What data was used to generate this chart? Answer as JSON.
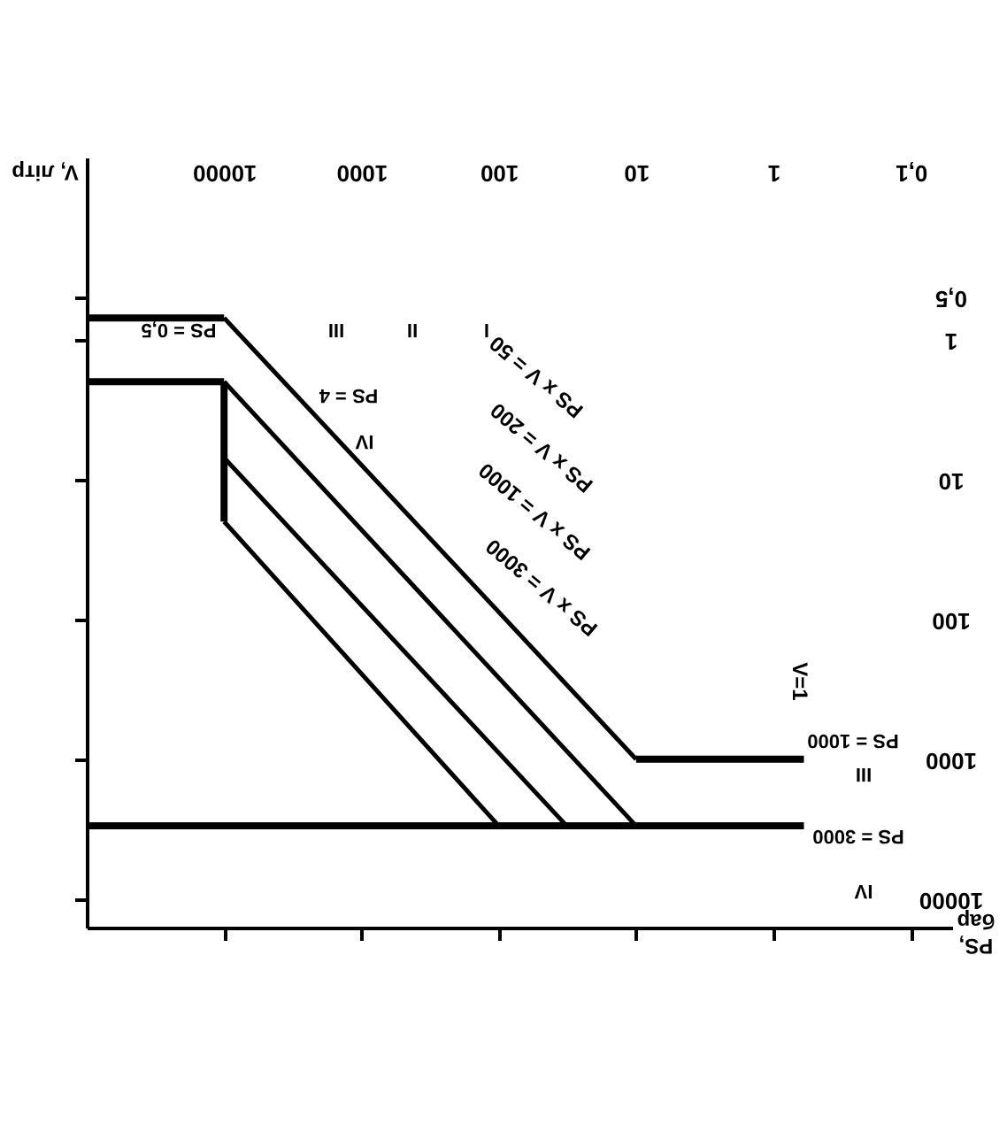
{
  "chart_data": {
    "type": "line",
    "xlabel": "V, літр",
    "ylabel": "PS, бар",
    "log": "xy",
    "xlim": [
      100000,
      0.05
    ],
    "ylim": [
      16000,
      0.05
    ],
    "xticks": [
      10000,
      1000,
      100,
      10,
      1,
      {
        "value": 0.1,
        "label": "0,1"
      }
    ],
    "yticks": [
      {
        "value": 0.5,
        "label": "0,5"
      },
      1,
      10,
      100,
      1000,
      10000
    ],
    "series": [
      {
        "color": "#000000",
        "x": [
          100000,
          10000
        ],
        "values": [
          0.7,
          0.7
        ]
      },
      {
        "color": "#000000",
        "x": [
          10000,
          10
        ],
        "values": [
          0.7,
          1000
        ]
      },
      {
        "color": "#000000",
        "x": [
          10,
          0.6
        ],
        "values": [
          1000,
          1000
        ]
      },
      {
        "color": "#000000",
        "x": [
          100000,
          10000
        ],
        "values": [
          2,
          2
        ]
      },
      {
        "color": "#000000",
        "x": [
          10000,
          10000
        ],
        "values": [
          2,
          20
        ]
      },
      {
        "color": "#000000",
        "x": [
          10000,
          10
        ],
        "values": [
          2,
          3000
        ]
      },
      {
        "color": "#000000",
        "x": [
          10000,
          32
        ],
        "values": [
          7,
          3000
        ]
      },
      {
        "color": "#000000",
        "x": [
          10000,
          100
        ],
        "values": [
          20,
          3000
        ]
      },
      {
        "color": "#000000",
        "x": [
          100000,
          0.6
        ],
        "values": [
          3000,
          3000
        ]
      }
    ],
    "annotations": [
      "PS = 0,5",
      "III",
      "II",
      "I",
      "PS = 4",
      "IV",
      "PS x V = 50",
      "PS x V = 200",
      "PS x V = 1000",
      "PS x V = 3000",
      "V=1",
      "PS = 1000",
      "III",
      "PS = 3000",
      "IV"
    ]
  }
}
